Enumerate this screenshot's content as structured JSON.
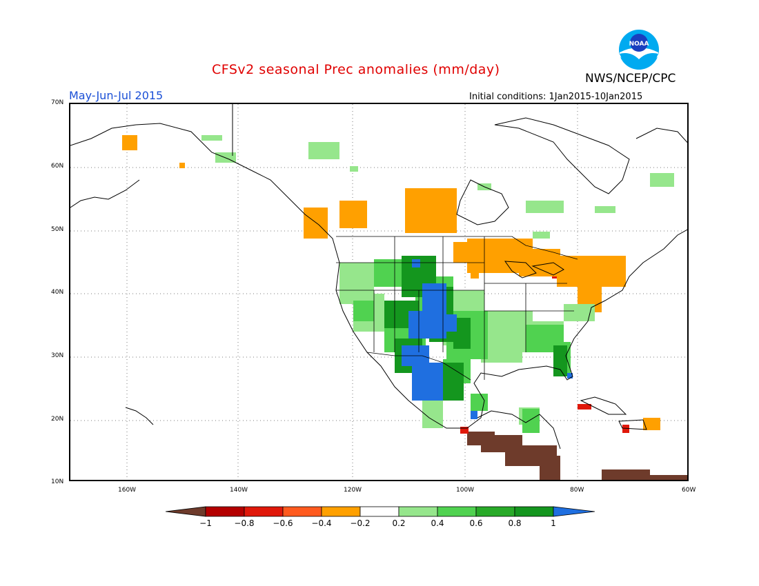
{
  "header": {
    "title": "CFSv2 seasonal Prec anomalies (mm/day)",
    "agency": "NWS/NCEP/CPC",
    "period": "May-Jun-Jul 2015",
    "initial_conditions": "Initial conditions: 1Jan2015-10Jan2015",
    "logo_text": "NOAA"
  },
  "axes": {
    "lat_labels": [
      "70N",
      "60N",
      "50N",
      "40N",
      "30N",
      "20N",
      "10N"
    ],
    "lon_labels": [
      "160W",
      "140W",
      "120W",
      "100W",
      "80W",
      "60W"
    ]
  },
  "legend": {
    "labels": [
      "−1",
      "−0.8",
      "−0.6",
      "−0.4",
      "−0.2",
      "0.2",
      "0.4",
      "0.6",
      "0.8",
      "1"
    ],
    "colors": [
      "#6e3b2b",
      "#b40000",
      "#e0180a",
      "#ff5a1e",
      "#ffa000",
      "#ffffff",
      "#96e68c",
      "#50d250",
      "#28aa28",
      "#14961e",
      "#1f6fe0"
    ]
  }
}
